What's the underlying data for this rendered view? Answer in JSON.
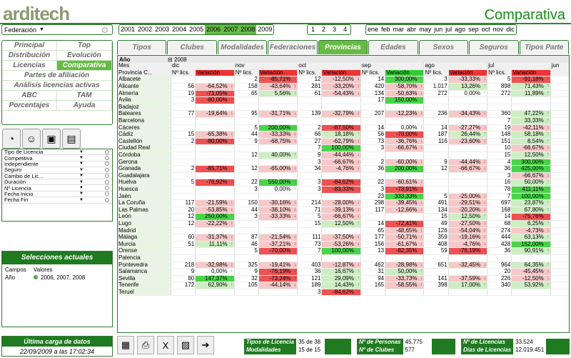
{
  "app": {
    "logo": "arditech",
    "title": "Comparativa"
  },
  "federacion": {
    "value": "Federación"
  },
  "years": {
    "items": [
      "2001",
      "2002",
      "2003",
      "2004",
      "2005",
      "2006",
      "2007",
      "2008",
      "2009"
    ],
    "active": [
      "2006",
      "2007",
      "2008"
    ]
  },
  "nums": [
    "1",
    "2",
    "3",
    "4"
  ],
  "months": [
    "ene",
    "feb",
    "mar",
    "abr",
    "may",
    "jun",
    "jul",
    "ago",
    "sep",
    "oct",
    "nov",
    "dic"
  ],
  "menu": [
    [
      "Principal",
      "Top"
    ],
    [
      "Distribución",
      "Evolución"
    ],
    [
      "Licencias",
      "Comparativa"
    ],
    [
      "Partes de afiliación"
    ],
    [
      "Análisis licencias activas"
    ],
    [
      "ABC",
      "TAM"
    ],
    [
      "Porcentajes",
      "Ayuda"
    ]
  ],
  "menu_active": "Comparativa",
  "filters": [
    "Tipo de Licencia",
    "Competitiva",
    "Independiente",
    "Seguro",
    "Cambio de Lic...",
    "Duración",
    "Nº Licencia",
    "Fecha Inicio",
    "Fecha Fin"
  ],
  "selecciones": {
    "title": "Selecciones actuales",
    "col1": "Campos",
    "col2": "Valores",
    "row_campo": "Año",
    "row_valor": "2006, 2007, 2008"
  },
  "ultima": {
    "title": "Última carga de datos",
    "value": "22/09/2009 a las 17:02:34"
  },
  "tabs": [
    "Tipos Licencia",
    "Clubes",
    "Modalidades",
    "Federaciones",
    "Provincias",
    "Edades",
    "Sexos",
    "Seguros",
    "Tipos Parte"
  ],
  "active_tab": "Provincias",
  "grid": {
    "anio_label": "Año",
    "anio_value": "2008",
    "mes_label": "Mes",
    "prov_label": "Provincia C...",
    "months": [
      "dic",
      "nov",
      "oct",
      "sep",
      "ago",
      "jul",
      "jun"
    ],
    "col_lics": "Nº lics.",
    "col_var": "Variación",
    "rows": [
      [
        "Albacete",
        "",
        "",
        "2",
        "-85,71%",
        "12",
        "-12,50%",
        "14",
        "300,00%",
        "3",
        "-33,33%",
        "5",
        "-91,18%"
      ],
      [
        "Alicante",
        "56",
        "-64,52%",
        "158",
        "-43,64%",
        "281",
        "-33,20%",
        "420",
        "-58,70%",
        "1.017",
        "13,26%",
        "898",
        "71,43%"
      ],
      [
        "Almería",
        "19",
        "-71,05%",
        "65",
        "5,56%",
        "61",
        "-54,43%",
        "134",
        "-50,63%",
        "272",
        "0,00%",
        "272",
        "11,89%"
      ],
      [
        "Ávila",
        "3",
        "-80,00%",
        "",
        "",
        "",
        "",
        "17",
        "150,00%",
        "",
        "",
        "",
        ""
      ],
      [
        "Badajoz",
        "",
        "",
        "",
        "",
        "",
        "",
        "",
        "",
        "",
        "",
        "",
        ""
      ],
      [
        "Baleares",
        "77",
        "-19,64%",
        "95",
        "-31,71%",
        "139",
        "-32,79%",
        "207",
        "-12,23%",
        "236",
        "-34,43%",
        "360",
        "47,22%"
      ],
      [
        "Barcelona",
        "",
        "",
        "",
        "",
        "",
        "",
        "",
        "",
        "",
        "",
        "7",
        "33,33%"
      ],
      [
        "Cáceres",
        "",
        "",
        "5",
        "200,00%",
        "2",
        "-87,50%",
        "14",
        "0,00%",
        "14",
        "-27,27%",
        "19",
        "-42,11%"
      ],
      [
        "Cádiz",
        "15",
        "-65,38%",
        "44",
        "-33,33%",
        "66",
        "18,18%",
        "56",
        "-70,00%",
        "187",
        "26,44%",
        "148",
        "58,18%"
      ],
      [
        "Castellón",
        "2",
        "-80,00%",
        "9",
        "-68,75%",
        "27",
        "-62,79%",
        "73",
        "-36,76%",
        "116",
        "-23,60%",
        "151",
        "8,54%"
      ],
      [
        "Ciudad Real",
        "",
        "",
        "",
        "",
        "7",
        "100,00%",
        "3",
        "-66,67%",
        "",
        "",
        "10",
        "-66,67%"
      ],
      [
        "Córdoba",
        "",
        "",
        "12",
        "40,00%",
        "9",
        "-44,44%",
        "",
        "",
        "",
        "",
        "15",
        "12,50%"
      ],
      [
        "Gerona",
        "",
        "",
        "",
        "",
        "3",
        "-66,67%",
        "2",
        "-60,00%",
        "9",
        "-44,44%",
        "4",
        "300,00%"
      ],
      [
        "Granada",
        "2",
        "-85,71%",
        "12",
        "-65,00%",
        "34",
        "-4,76%",
        "36",
        "200,00%",
        "12",
        "-66,67%",
        "36",
        "425,00%"
      ],
      [
        "Guadalajara",
        "",
        "",
        "",
        "",
        "",
        "",
        "",
        "",
        "",
        "",
        "3",
        "-66,67%"
      ],
      [
        "Huelva",
        "5",
        "-76,92%",
        "22",
        "550,00%",
        "3",
        "-84,62%",
        "22",
        "-60,61%",
        "",
        "",
        "16",
        "50,00%"
      ],
      [
        "Huesca",
        "",
        "",
        "3",
        "0,00%",
        "3",
        "-83,33%",
        "3",
        "-73,91%",
        "",
        "",
        "78",
        "411,11%"
      ],
      [
        "Jaén",
        "",
        "",
        "",
        "",
        "",
        "",
        "23",
        "333,33%",
        "5",
        "-25,00%",
        "7",
        "100,00%"
      ],
      [
        "La Coruña",
        "117",
        "-21,59%",
        "150",
        "-30,16%",
        "214",
        "-28,00%",
        "298",
        "-39,45%",
        "491",
        "-29,51%",
        "697",
        "23,87%"
      ],
      [
        "Las Palmas",
        "20",
        "-53,85%",
        "44",
        "-38,10%",
        "71",
        "-39,13%",
        "117",
        "-12,66%",
        "134",
        "-20,20%",
        "168",
        "67,80%"
      ],
      [
        "León",
        "12",
        "250,00%",
        "3",
        "-33,33%",
        "5",
        "-66,67%",
        "",
        "",
        "15",
        "12,50%",
        "14",
        "-75,76%"
      ],
      [
        "Lugo",
        "12",
        "-22,22%",
        "",
        "",
        "15",
        "12,50%",
        "14",
        "-72,41%",
        "49",
        "-27,50%",
        "68",
        "6,25%"
      ],
      [
        "Madrid",
        "",
        "",
        "",
        "",
        "",
        "",
        "65",
        "-48,65%",
        "126",
        "-54,04%",
        "274",
        "-4,73%"
      ],
      [
        "Málaga",
        "60",
        "-31,37%",
        "87",
        "-21,54%",
        "111",
        "-37,50%",
        "177",
        "-50,71%",
        "359",
        "-19,16%",
        "444",
        "63,13%"
      ],
      [
        "Murcia",
        "51",
        "11,11%",
        "46",
        "-37,21%",
        "73",
        "-53,26%",
        "156",
        "-61,67%",
        "408",
        "-4,76%",
        "428",
        "152,00%"
      ],
      [
        "Orense",
        "",
        "",
        "5",
        "-70,00%",
        "7",
        "100,00%",
        "13",
        "-82,35%",
        "59",
        "-76,19%",
        "36",
        "90,91%"
      ],
      [
        "Palencia",
        "",
        "",
        "",
        "",
        "",
        "",
        "",
        "",
        "",
        "",
        "",
        ""
      ],
      [
        "Pontevedra",
        "218",
        "-32,98%",
        "325",
        "-19,41%",
        "403",
        "-12,87%",
        "462",
        "-28,98%",
        "651",
        "-32,45%",
        "964",
        "64,35%"
      ],
      [
        "Salamanca",
        "9",
        "0,00%",
        "9",
        "-76,19%",
        "36",
        "16,67%",
        "31",
        "50,00%",
        "",
        "",
        "20",
        "-45,45%"
      ],
      [
        "Sevilla",
        "80",
        "147,37%",
        "32",
        "-73,24%",
        "121",
        "29,09%",
        "94",
        "-33,73%",
        "141",
        "-37,59%",
        "226",
        "-12,50%"
      ],
      [
        "Tenerife",
        "172",
        "62,90%",
        "105",
        "-44,14%",
        "189",
        "14,43%",
        "165",
        "-58,55%",
        "398",
        "17,00%",
        "340",
        "53,92%"
      ],
      [
        "Teruel",
        "",
        "",
        "",
        "",
        "3",
        "-84,62%",
        "",
        "",
        "",
        "",
        "",
        ""
      ]
    ]
  },
  "stats": {
    "tipos_lic_label": "Tipos de Licencia",
    "tipos_lic_value": "35 de 38",
    "modalidades_label": "Modalidades",
    "modalidades_value": "15 de 15",
    "personas_label": "Nº de Personas",
    "personas_value": "45.775",
    "clubes_label": "Nº de Clubes",
    "clubes_value": "577",
    "licencias_label": "Nº de Licencias",
    "licencias_value": "33.524",
    "dias_label": "Días de Licencias",
    "dias_value": "12.019.451"
  }
}
